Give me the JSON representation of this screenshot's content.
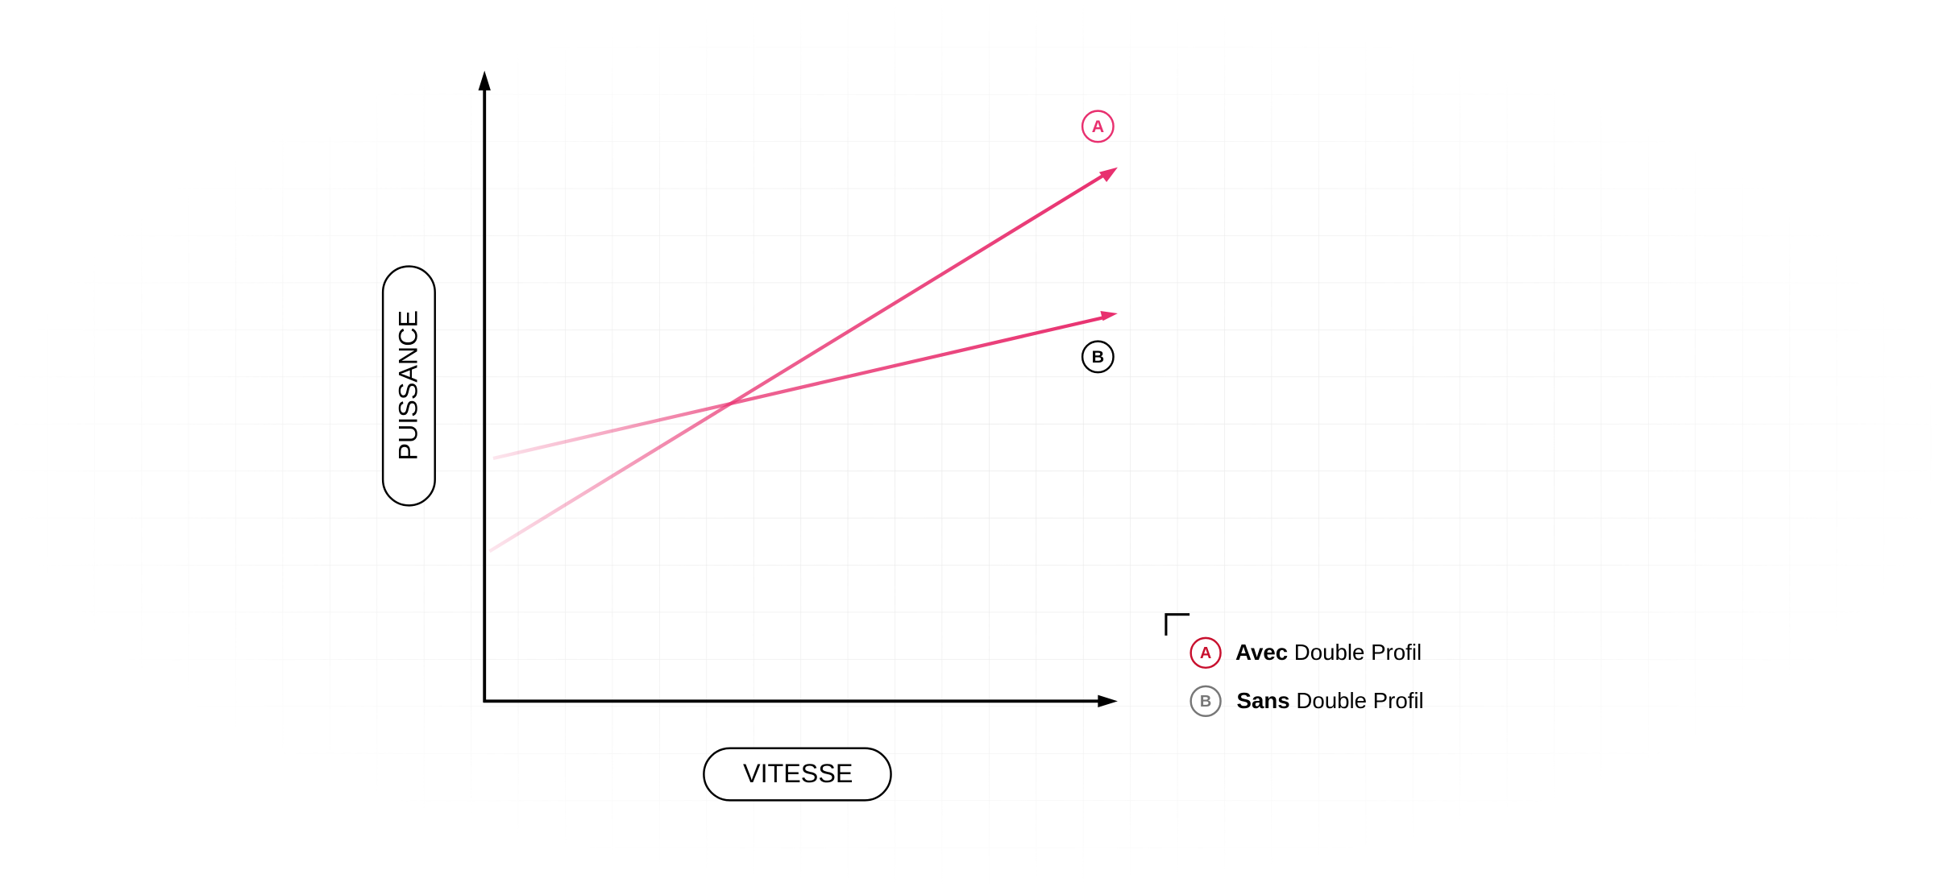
{
  "axes": {
    "y_label": "PUISSANCE",
    "x_label": "VITESSE"
  },
  "lines": [
    {
      "label": "A"
    },
    {
      "label": "B"
    }
  ],
  "legend": [
    {
      "marker": "A",
      "bold": "Avec",
      "text": "Double Profil"
    },
    {
      "marker": "B",
      "bold": "Sans",
      "text": "Double Profil"
    }
  ]
}
